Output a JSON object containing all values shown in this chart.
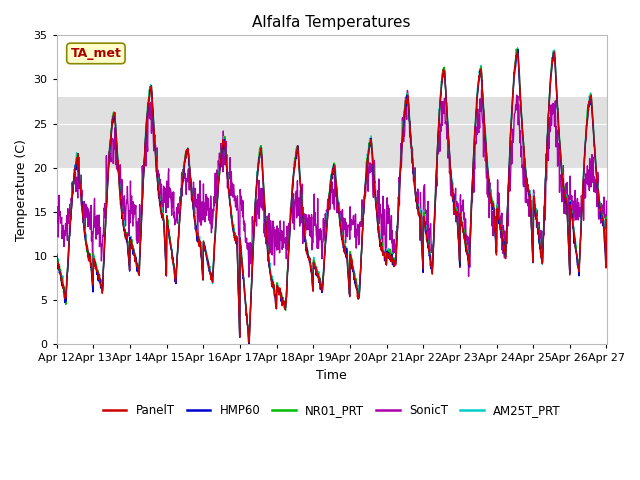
{
  "title": "Alfalfa Temperatures",
  "xlabel": "Time",
  "ylabel": "Temperature (C)",
  "ylim": [
    0,
    35
  ],
  "background_color": "#ffffff",
  "plot_bg_color": "#ffffff",
  "shaded_band": {
    "ymin": 20,
    "ymax": 28,
    "color": "#e0e0e0"
  },
  "tick_labels": [
    "Apr 12",
    "Apr 13",
    "Apr 14",
    "Apr 15",
    "Apr 16",
    "Apr 17",
    "Apr 18",
    "Apr 19",
    "Apr 20",
    "Apr 21",
    "Apr 22",
    "Apr 23",
    "Apr 24",
    "Apr 25",
    "Apr 26",
    "Apr 27"
  ],
  "yticks": [
    0,
    5,
    10,
    15,
    20,
    25,
    30,
    35
  ],
  "annotation": {
    "text": "TA_met",
    "color": "#aa0000",
    "bg": "#ffffcc",
    "edgecolor": "#888800",
    "fontsize": 9
  },
  "legend_entries": [
    "PanelT",
    "HMP60",
    "NR01_PRT",
    "SonicT",
    "AM25T_PRT"
  ],
  "legend_colors": [
    "#cc0000",
    "#0000cc",
    "#00bb00",
    "#aa00aa",
    "#00cccc"
  ],
  "line_width": 1.0,
  "n_days": 15,
  "pts_per_day": 96
}
